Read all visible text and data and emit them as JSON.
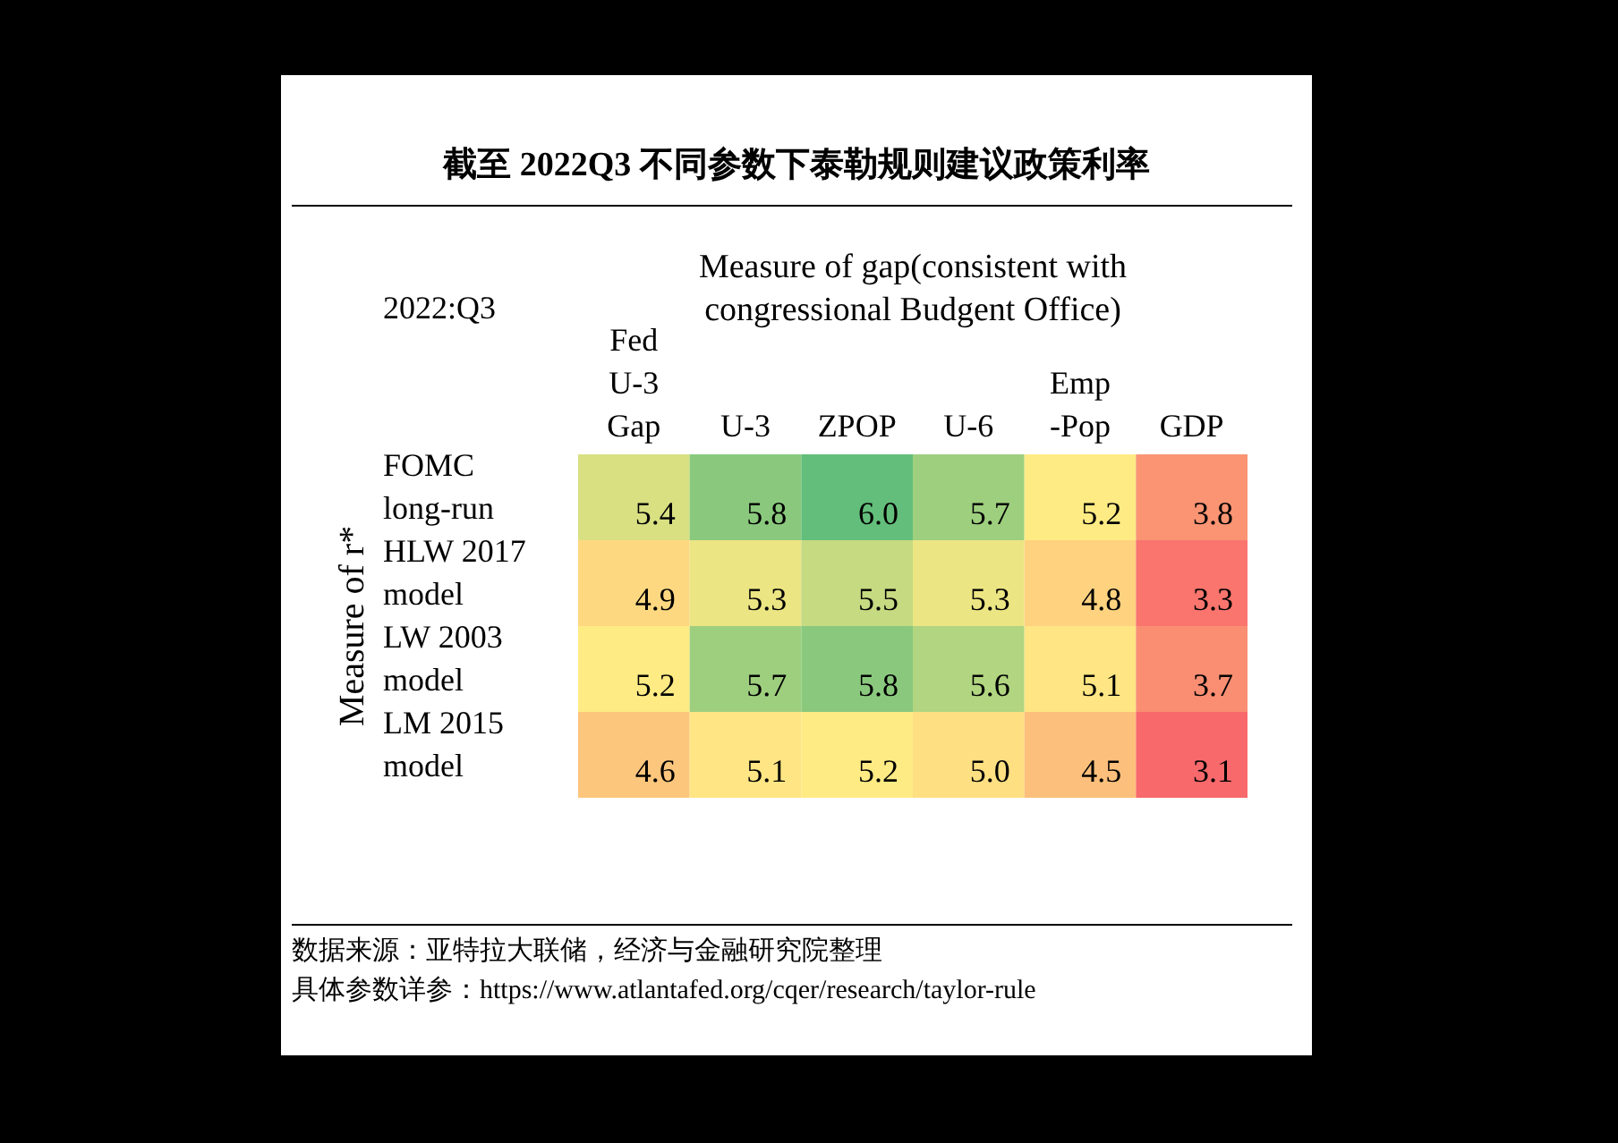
{
  "chart_data": {
    "type": "heatmap",
    "title": "截至 2022Q3 不同参数下泰勒规则建议政策利率",
    "xlabel": "Measure of gap(consistent with congressional Budgent Office)",
    "ylabel": "Measure of r*",
    "categories": [
      "Fed U-3 Gap",
      "U-3",
      "ZPOP",
      "U-6",
      "Emp -Pop",
      "GDP"
    ],
    "y_categories": [
      "FOMC long-run",
      "HLW 2017 model",
      "LW 2003 model",
      "LM 2015 model"
    ],
    "cells": [
      [
        5.4,
        5.8,
        6.0,
        5.7,
        5.2,
        3.8
      ],
      [
        4.9,
        5.3,
        5.5,
        5.3,
        4.8,
        3.3
      ],
      [
        5.2,
        5.7,
        5.8,
        5.6,
        5.1,
        3.7
      ],
      [
        4.6,
        5.1,
        5.2,
        5.0,
        4.5,
        3.1
      ]
    ],
    "cell_labels": [
      [
        "5.4",
        "5.8",
        "6.0",
        "5.7",
        "5.2",
        "3.8"
      ],
      [
        "4.9",
        "5.3",
        "5.5",
        "5.3",
        "4.8",
        "3.3"
      ],
      [
        "5.2",
        "5.7",
        "5.8",
        "5.6",
        "5.1",
        "3.7"
      ],
      [
        "4.6",
        "5.1",
        "5.2",
        "5.0",
        "4.5",
        "3.1"
      ]
    ],
    "data_labels": true,
    "annotations": [
      "2022:Q3",
      "数据来源：亚特拉大联储，经济与金融研究院整理",
      "具体参数详参：https://www.atlantafed.org/cqer/research/taylor-rule"
    ]
  }
}
